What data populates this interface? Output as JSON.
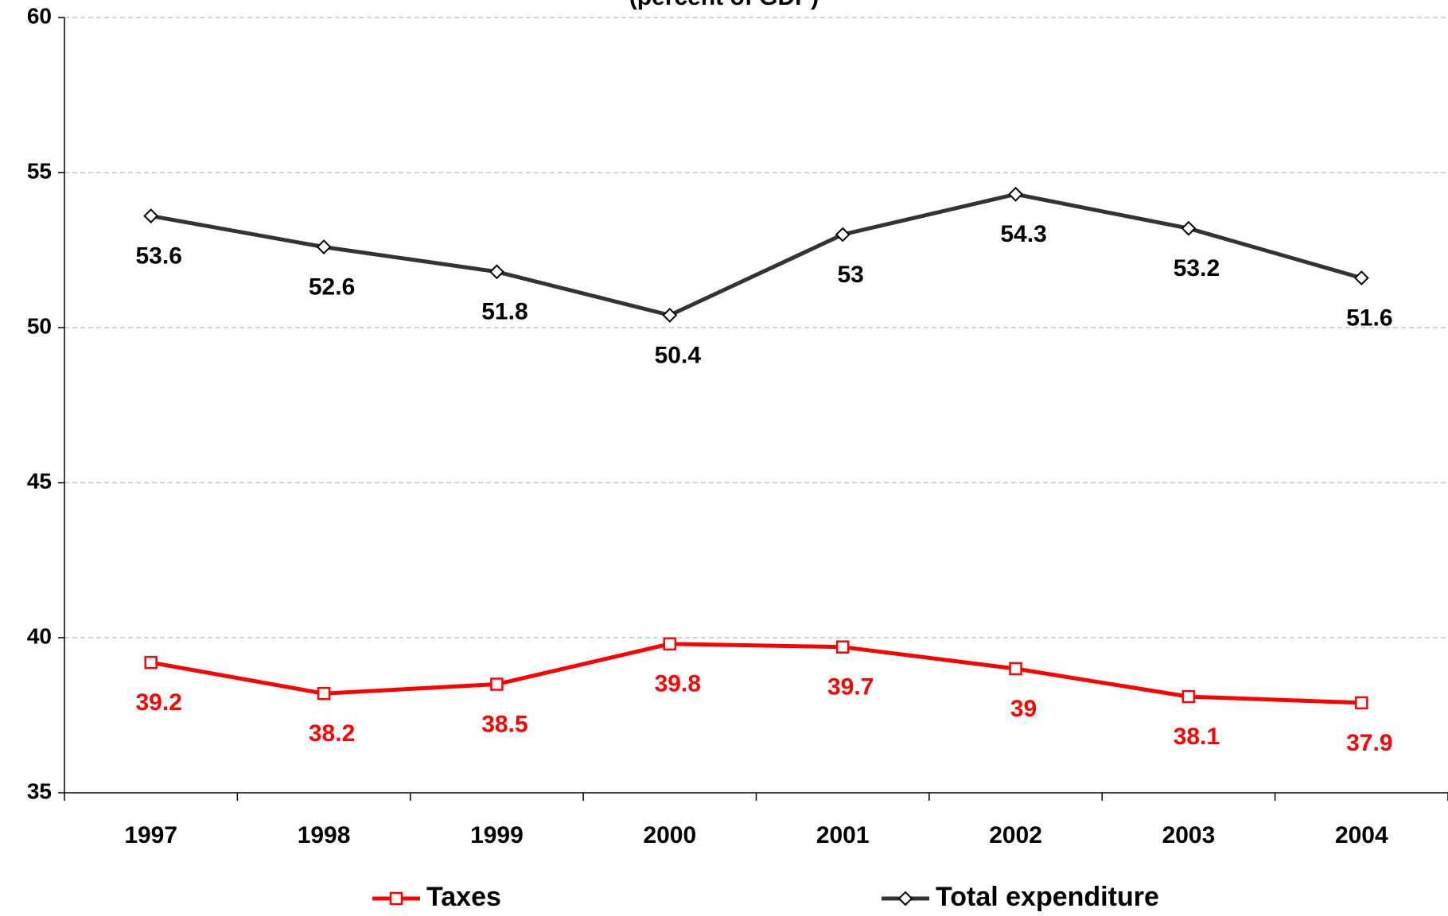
{
  "chart_data": {
    "type": "line",
    "title": "(percent of GDP)",
    "categories": [
      "1997",
      "1998",
      "1999",
      "2000",
      "2001",
      "2002",
      "2003",
      "2004"
    ],
    "series": [
      {
        "name": "Taxes",
        "color": "#ff0000",
        "marker": "square",
        "values": [
          39.2,
          38.2,
          38.5,
          39.8,
          39.7,
          39,
          38.1,
          37.9
        ]
      },
      {
        "name": "Total expenditure",
        "color": "#333333",
        "marker": "diamond",
        "values": [
          53.6,
          52.6,
          51.8,
          50.4,
          53,
          54.3,
          53.2,
          51.6
        ]
      }
    ],
    "ylim": [
      35,
      60
    ],
    "yticks": [
      35,
      40,
      45,
      50,
      55,
      60
    ],
    "grid": true,
    "legend": "bottom"
  }
}
